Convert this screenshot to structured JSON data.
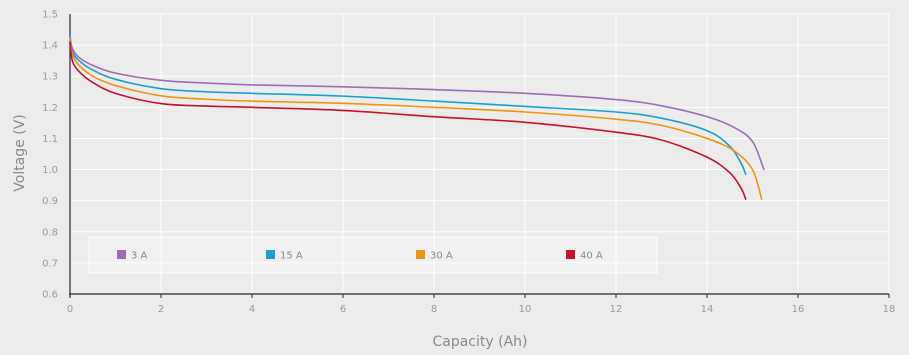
{
  "chart_data": {
    "type": "line",
    "title": "",
    "xlabel": "Capacity (Ah)",
    "ylabel": "Voltage (V)",
    "xlim": [
      0,
      18
    ],
    "ylim": [
      0.6,
      1.5
    ],
    "x_ticks": [
      "0",
      "2",
      "4",
      "6",
      "8",
      "10",
      "12",
      "14",
      "16",
      "18"
    ],
    "y_ticks": [
      "0.6",
      "0.7",
      "0.8",
      "0.9",
      "1.0",
      "1.1",
      "1.2",
      "1.3",
      "1.4",
      "1.5"
    ],
    "grid": true,
    "legend_position": "bottom-left inside plot",
    "series": [
      {
        "name": "3 A",
        "color": "#9b6fb3",
        "points": [
          [
            0,
            1.43
          ],
          [
            0.05,
            1.39
          ],
          [
            0.2,
            1.36
          ],
          [
            0.5,
            1.335
          ],
          [
            1,
            1.31
          ],
          [
            2,
            1.287
          ],
          [
            3,
            1.278
          ],
          [
            4,
            1.272
          ],
          [
            6,
            1.266
          ],
          [
            8,
            1.257
          ],
          [
            10,
            1.245
          ],
          [
            12,
            1.225
          ],
          [
            13,
            1.205
          ],
          [
            14,
            1.17
          ],
          [
            14.6,
            1.135
          ],
          [
            15,
            1.09
          ],
          [
            15.25,
            1.0
          ]
        ]
      },
      {
        "name": "15 A",
        "color": "#1a9fd0",
        "points": [
          [
            0,
            1.43
          ],
          [
            0.05,
            1.38
          ],
          [
            0.2,
            1.35
          ],
          [
            0.5,
            1.32
          ],
          [
            1,
            1.29
          ],
          [
            2,
            1.26
          ],
          [
            3,
            1.25
          ],
          [
            4,
            1.245
          ],
          [
            6,
            1.236
          ],
          [
            8,
            1.22
          ],
          [
            10,
            1.203
          ],
          [
            12,
            1.185
          ],
          [
            13,
            1.165
          ],
          [
            14,
            1.125
          ],
          [
            14.5,
            1.075
          ],
          [
            14.75,
            1.02
          ],
          [
            14.85,
            0.985
          ]
        ]
      },
      {
        "name": "30 A",
        "color": "#f0960e",
        "points": [
          [
            0,
            1.42
          ],
          [
            0.05,
            1.37
          ],
          [
            0.2,
            1.335
          ],
          [
            0.5,
            1.3
          ],
          [
            1,
            1.27
          ],
          [
            2,
            1.237
          ],
          [
            3,
            1.226
          ],
          [
            4,
            1.22
          ],
          [
            6,
            1.213
          ],
          [
            8,
            1.2
          ],
          [
            10,
            1.185
          ],
          [
            12,
            1.162
          ],
          [
            13,
            1.142
          ],
          [
            14,
            1.1
          ],
          [
            14.6,
            1.06
          ],
          [
            15,
            1.0
          ],
          [
            15.2,
            0.905
          ]
        ]
      },
      {
        "name": "40 A",
        "color": "#c8102e",
        "points": [
          [
            0,
            1.41
          ],
          [
            0.05,
            1.35
          ],
          [
            0.2,
            1.315
          ],
          [
            0.5,
            1.28
          ],
          [
            1,
            1.245
          ],
          [
            2,
            1.212
          ],
          [
            3,
            1.204
          ],
          [
            4,
            1.2
          ],
          [
            6,
            1.19
          ],
          [
            8,
            1.17
          ],
          [
            10,
            1.152
          ],
          [
            12,
            1.12
          ],
          [
            13,
            1.095
          ],
          [
            14,
            1.04
          ],
          [
            14.5,
            0.99
          ],
          [
            14.75,
            0.94
          ],
          [
            14.85,
            0.905
          ]
        ]
      }
    ]
  }
}
